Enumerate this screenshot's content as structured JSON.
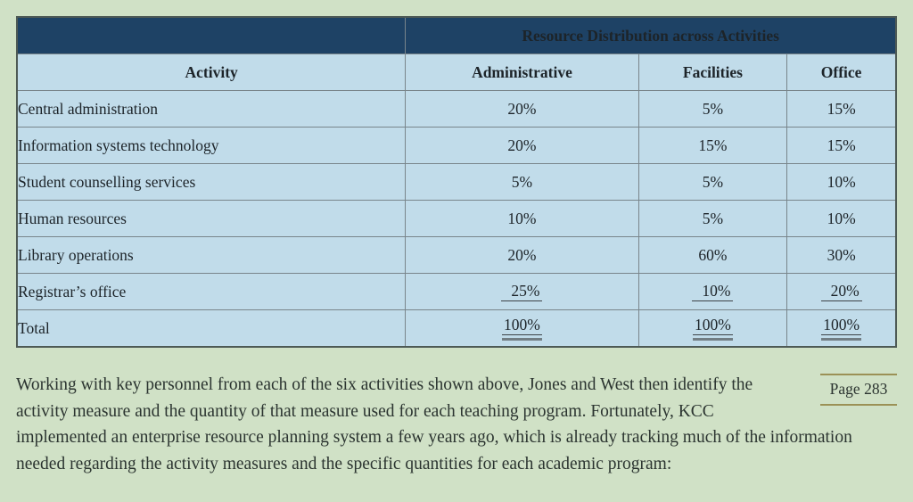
{
  "colors": {
    "page_background": "#d0e1c6",
    "table_header_navy": "#1e4265",
    "table_cell_blue": "#c1dcea",
    "grid_line": "#79858b",
    "page_marker_rule": "#9b9156"
  },
  "table": {
    "header_title": "Resource Distribution across Activities",
    "columns": [
      "Activity",
      "Administrative",
      "Facilities",
      "Office"
    ],
    "rows": [
      {
        "activity": "Central administration",
        "administrative": "20%",
        "facilities": "5%",
        "office": "15%"
      },
      {
        "activity": "Information systems technology",
        "administrative": "20%",
        "facilities": "15%",
        "office": "15%"
      },
      {
        "activity": "Student counselling services",
        "administrative": "5%",
        "facilities": "5%",
        "office": "10%"
      },
      {
        "activity": "Human resources",
        "administrative": "10%",
        "facilities": "5%",
        "office": "10%"
      },
      {
        "activity": "Library operations",
        "administrative": "20%",
        "facilities": "60%",
        "office": "30%"
      },
      {
        "activity": "Registrar’s office",
        "administrative": "25%",
        "facilities": "10%",
        "office": "20%"
      }
    ],
    "total": {
      "label": "Total",
      "administrative": "100%",
      "facilities": "100%",
      "office": "100%"
    }
  },
  "body_text": "Working with key personnel from each of the six activities shown above, Jones and West then identify the activity measure and the quantity of that measure used for each teaching program. Fortunately, KCC implemented an enterprise resource planning system a few years ago, which is already tracking much of the information needed regarding the activity measures and the specific quantities for each academic program:",
  "page_marker": "Page 283"
}
